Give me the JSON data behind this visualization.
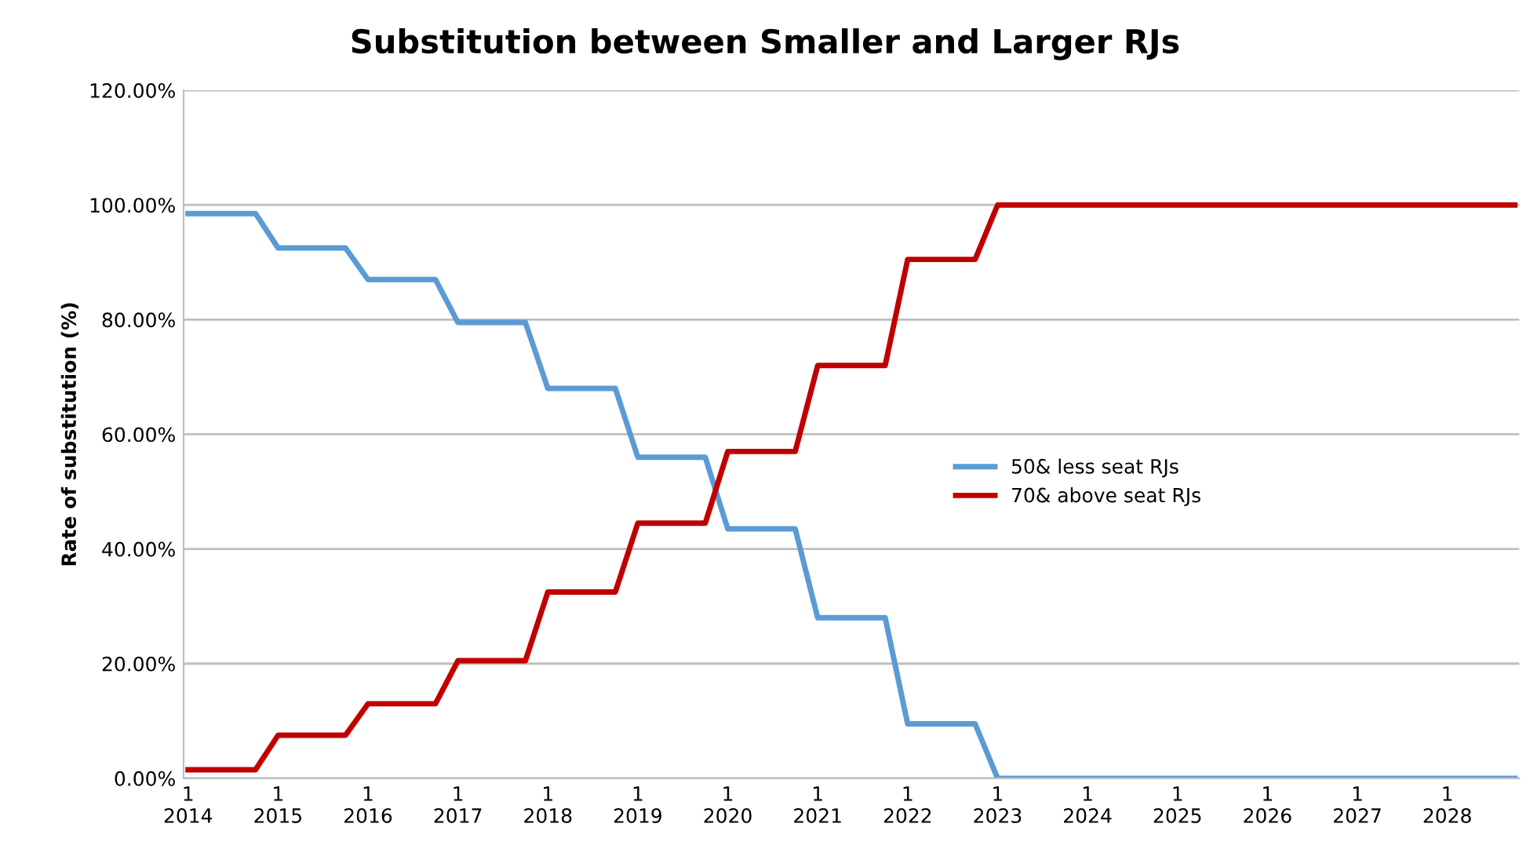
{
  "chart_data": {
    "type": "line",
    "title": "Substitution between Smaller and Larger RJs",
    "ylabel": "Rate of substitution (%)",
    "categories": [
      "1\n2014",
      null,
      null,
      null,
      "1\n2015",
      null,
      null,
      null,
      "1\n2016",
      null,
      null,
      null,
      "1\n2017",
      null,
      null,
      null,
      "1\n2018",
      null,
      null,
      null,
      "1\n2019",
      null,
      null,
      null,
      "1\n2020",
      null,
      null,
      null,
      "1\n2021",
      null,
      null,
      null,
      "1\n2022",
      null,
      null,
      null,
      "1\n2023",
      null,
      null,
      null,
      "1\n2024",
      null,
      null,
      null,
      "1\n2025",
      null,
      null,
      null,
      "1\n2026",
      null,
      null,
      null,
      "1\n2027",
      null,
      null,
      null,
      "1\n2028",
      null,
      null,
      null
    ],
    "series": [
      {
        "name": "50& less seat RJs",
        "color": "#5b9bd5",
        "values": [
          98.5,
          98.5,
          98.5,
          98.5,
          92.5,
          92.5,
          92.5,
          92.5,
          87,
          87,
          87,
          87,
          79.5,
          79.5,
          79.5,
          79.5,
          68,
          68,
          68,
          68,
          56,
          56,
          56,
          56,
          43.5,
          43.5,
          43.5,
          43.5,
          28,
          28,
          28,
          28,
          9.5,
          9.5,
          9.5,
          9.5,
          0,
          0,
          0,
          0,
          0,
          0,
          0,
          0,
          0,
          0,
          0,
          0,
          0,
          0,
          0,
          0,
          0,
          0,
          0,
          0,
          0,
          0,
          0,
          0
        ]
      },
      {
        "name": "70& above seat RJs",
        "color": "#c00000",
        "values": [
          1.5,
          1.5,
          1.5,
          1.5,
          7.5,
          7.5,
          7.5,
          7.5,
          13,
          13,
          13,
          13,
          20.5,
          20.5,
          20.5,
          20.5,
          32.5,
          32.5,
          32.5,
          32.5,
          44.5,
          44.5,
          44.5,
          44.5,
          57,
          57,
          57,
          57,
          72,
          72,
          72,
          72,
          90.5,
          90.5,
          90.5,
          90.5,
          100,
          100,
          100,
          100,
          100,
          100,
          100,
          100,
          100,
          100,
          100,
          100,
          100,
          100,
          100,
          100,
          100,
          100,
          100,
          100,
          100,
          100,
          100,
          100
        ]
      }
    ],
    "ylim": [
      0,
      120
    ],
    "yticks": [
      {
        "value": 0,
        "label": "0.00%"
      },
      {
        "value": 20,
        "label": "20.00%"
      },
      {
        "value": 40,
        "label": "40.00%"
      },
      {
        "value": 60,
        "label": "60.00%"
      },
      {
        "value": 80,
        "label": "80.00%"
      },
      {
        "value": 100,
        "label": "100.00%"
      },
      {
        "value": 120,
        "label": "120.00%"
      }
    ],
    "grid": "y",
    "legend": "center",
    "marker": "none",
    "line_style": "solid"
  }
}
